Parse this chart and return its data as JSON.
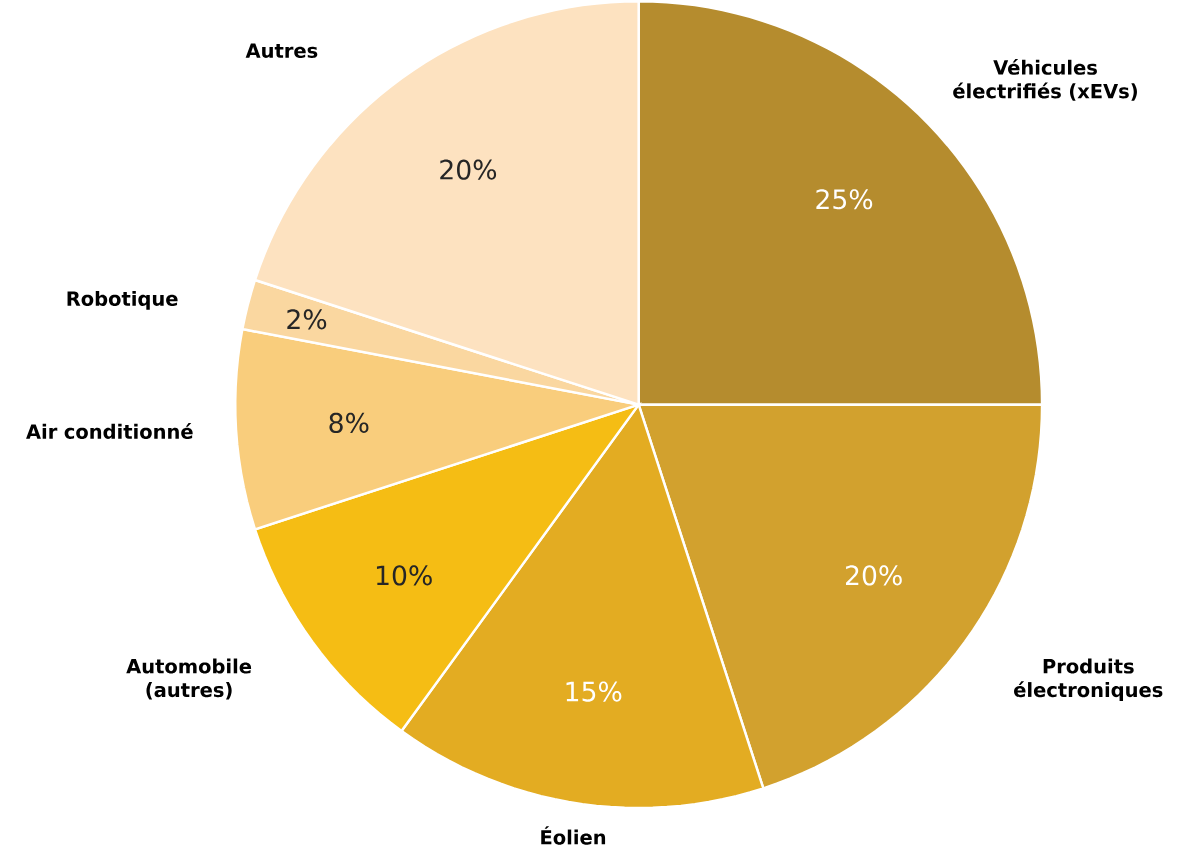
{
  "chart_data": {
    "type": "pie",
    "categories": [
      "Véhicules électrifiés (xEVs)",
      "Produits électroniques",
      "Éolien",
      "Automobile (autres)",
      "Air conditionné",
      "Robotique",
      "Autres"
    ],
    "values": [
      25,
      20,
      15,
      10,
      8,
      2,
      20
    ],
    "value_labels": [
      "25%",
      "20%",
      "15%",
      "10%",
      "8%",
      "2%",
      "20%"
    ],
    "colors": [
      "#b58c2e",
      "#d2a12e",
      "#e3ac22",
      "#f5bd14",
      "#f9cd7c",
      "#fad7a0",
      "#fde2c0"
    ]
  }
}
